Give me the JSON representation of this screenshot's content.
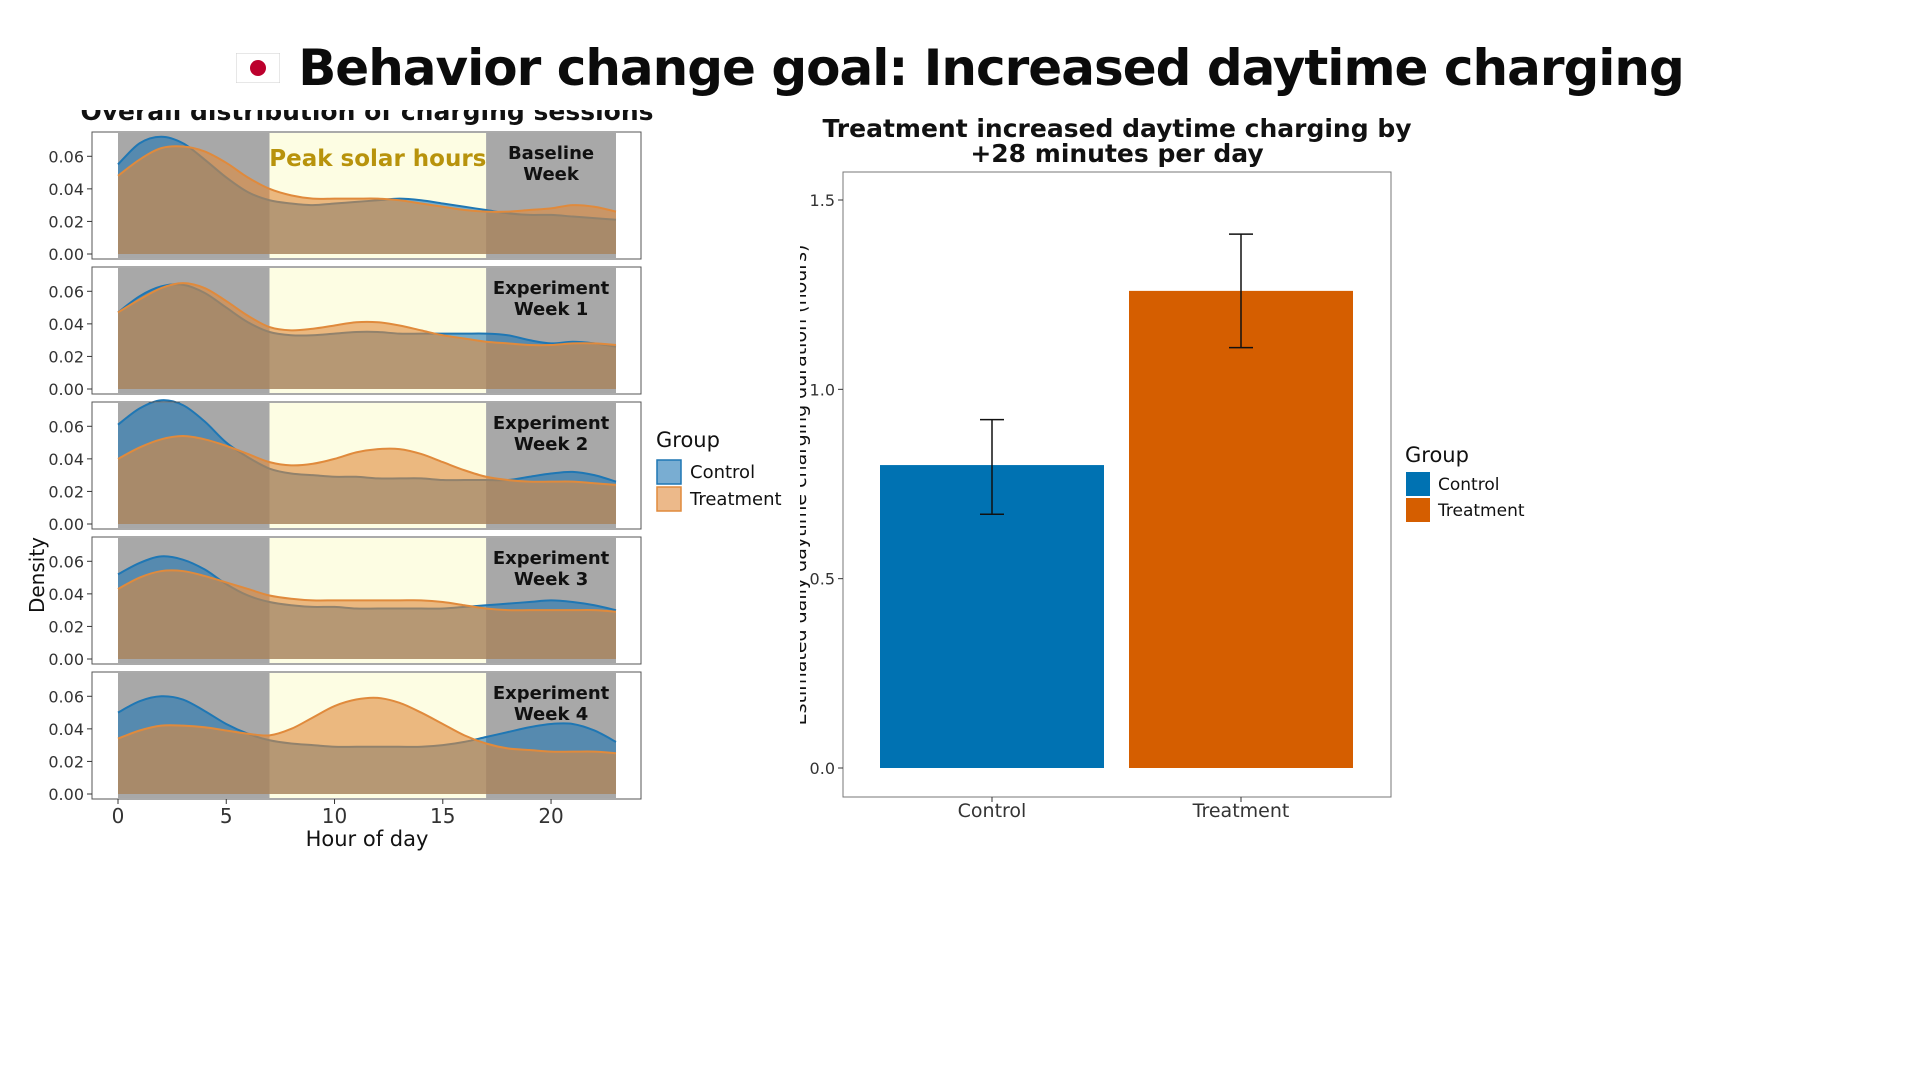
{
  "header": {
    "title": "Behavior change goal: Increased daytime charging",
    "flag_icon": "japan-flag-icon"
  },
  "colors": {
    "control": "#1f77b4",
    "treatment": "#e08a3c",
    "control_bar": "#0072b2",
    "treatment_bar": "#d55e00",
    "night_shade": "#a8a8a8",
    "solar_shade": "#fdfde3",
    "solar_label": "#b8930c"
  },
  "chart_data": [
    {
      "type": "area",
      "title": "Overall distribution of charging sessions",
      "xlabel": "Hour of day",
      "ylabel": "Density",
      "xlim": [
        0,
        23
      ],
      "ylim": [
        0,
        0.07
      ],
      "x_ticks": [
        0,
        5,
        10,
        15,
        20
      ],
      "y_ticks": [
        "0.00",
        "0.02",
        "0.04",
        "0.06"
      ],
      "shaded_regions": [
        {
          "from": 0,
          "to": 7,
          "kind": "night"
        },
        {
          "from": 7,
          "to": 17,
          "kind": "solar",
          "label": "Peak solar hours"
        },
        {
          "from": 17,
          "to": 23,
          "kind": "night"
        }
      ],
      "legend": {
        "title": "Group",
        "entries": [
          "Control",
          "Treatment"
        ],
        "position": "right"
      },
      "x": [
        0,
        1,
        2,
        3,
        4,
        5,
        6,
        7,
        8,
        9,
        10,
        11,
        12,
        13,
        14,
        15,
        16,
        17,
        18,
        19,
        20,
        21,
        22,
        23
      ],
      "panels": [
        {
          "label": "Baseline\nWeek",
          "label_lines": [
            "Baseline",
            "Week"
          ],
          "series": [
            {
              "name": "Control",
              "values": [
                0.055,
                0.068,
                0.072,
                0.068,
                0.058,
                0.047,
                0.038,
                0.033,
                0.031,
                0.03,
                0.031,
                0.032,
                0.033,
                0.034,
                0.033,
                0.031,
                0.029,
                0.027,
                0.025,
                0.024,
                0.024,
                0.023,
                0.022,
                0.021
              ]
            },
            {
              "name": "Treatment",
              "values": [
                0.048,
                0.058,
                0.065,
                0.066,
                0.063,
                0.056,
                0.047,
                0.04,
                0.036,
                0.034,
                0.034,
                0.034,
                0.034,
                0.033,
                0.031,
                0.029,
                0.027,
                0.026,
                0.026,
                0.027,
                0.028,
                0.03,
                0.029,
                0.026
              ]
            }
          ]
        },
        {
          "label": "Experiment\nWeek 1",
          "label_lines": [
            "Experiment",
            "Week 1"
          ],
          "series": [
            {
              "name": "Control",
              "values": [
                0.047,
                0.057,
                0.063,
                0.064,
                0.059,
                0.05,
                0.041,
                0.035,
                0.033,
                0.033,
                0.034,
                0.035,
                0.035,
                0.034,
                0.034,
                0.034,
                0.034,
                0.034,
                0.033,
                0.03,
                0.028,
                0.029,
                0.028,
                0.026
              ]
            },
            {
              "name": "Treatment",
              "values": [
                0.047,
                0.055,
                0.062,
                0.065,
                0.062,
                0.054,
                0.045,
                0.038,
                0.036,
                0.037,
                0.039,
                0.041,
                0.041,
                0.039,
                0.036,
                0.033,
                0.031,
                0.029,
                0.028,
                0.027,
                0.027,
                0.028,
                0.028,
                0.027
              ]
            }
          ]
        },
        {
          "label": "Experiment\nWeek 2",
          "label_lines": [
            "Experiment",
            "Week 2"
          ],
          "series": [
            {
              "name": "Control",
              "values": [
                0.061,
                0.071,
                0.076,
                0.073,
                0.063,
                0.05,
                0.041,
                0.034,
                0.031,
                0.03,
                0.029,
                0.029,
                0.028,
                0.028,
                0.028,
                0.027,
                0.027,
                0.027,
                0.027,
                0.029,
                0.031,
                0.032,
                0.03,
                0.026
              ]
            },
            {
              "name": "Treatment",
              "values": [
                0.04,
                0.047,
                0.052,
                0.054,
                0.052,
                0.048,
                0.043,
                0.038,
                0.036,
                0.037,
                0.04,
                0.044,
                0.046,
                0.046,
                0.043,
                0.038,
                0.033,
                0.029,
                0.027,
                0.026,
                0.026,
                0.026,
                0.025,
                0.024
              ]
            }
          ]
        },
        {
          "label": "Experiment\nWeek 3",
          "label_lines": [
            "Experiment",
            "Week 3"
          ],
          "series": [
            {
              "name": "Control",
              "values": [
                0.052,
                0.059,
                0.063,
                0.061,
                0.055,
                0.046,
                0.039,
                0.035,
                0.033,
                0.032,
                0.032,
                0.031,
                0.031,
                0.031,
                0.031,
                0.031,
                0.032,
                0.033,
                0.034,
                0.035,
                0.036,
                0.035,
                0.033,
                0.03
              ]
            },
            {
              "name": "Treatment",
              "values": [
                0.043,
                0.05,
                0.054,
                0.054,
                0.051,
                0.047,
                0.043,
                0.039,
                0.037,
                0.036,
                0.036,
                0.036,
                0.036,
                0.036,
                0.036,
                0.035,
                0.033,
                0.031,
                0.03,
                0.03,
                0.03,
                0.03,
                0.03,
                0.029
              ]
            }
          ]
        },
        {
          "label": "Experiment\nWeek 4",
          "label_lines": [
            "Experiment",
            "Week 4"
          ],
          "series": [
            {
              "name": "Control",
              "values": [
                0.05,
                0.057,
                0.06,
                0.058,
                0.051,
                0.043,
                0.037,
                0.033,
                0.031,
                0.03,
                0.029,
                0.029,
                0.029,
                0.029,
                0.029,
                0.03,
                0.032,
                0.035,
                0.038,
                0.041,
                0.043,
                0.043,
                0.039,
                0.032
              ]
            },
            {
              "name": "Treatment",
              "values": [
                0.034,
                0.039,
                0.042,
                0.042,
                0.041,
                0.039,
                0.037,
                0.036,
                0.04,
                0.047,
                0.054,
                0.058,
                0.059,
                0.056,
                0.05,
                0.043,
                0.036,
                0.031,
                0.028,
                0.027,
                0.026,
                0.026,
                0.026,
                0.025
              ]
            }
          ]
        }
      ]
    },
    {
      "type": "bar",
      "title": "Treatment increased daytime charging by\n+28 minutes per day",
      "title_lines": [
        "Treatment increased daytime charging by",
        "+28 minutes per day"
      ],
      "xlabel": "",
      "ylabel": "Estimated daily daytime charging duration (hours)",
      "ylim": [
        0,
        1.6
      ],
      "y_ticks": [
        "0.0",
        "0.5",
        "1.0",
        "1.5"
      ],
      "categories": [
        "Control",
        "Treatment"
      ],
      "values": [
        0.8,
        1.26
      ],
      "error_bars": [
        [
          0.67,
          0.92
        ],
        [
          1.11,
          1.41
        ]
      ],
      "legend": {
        "title": "Group",
        "entries": [
          "Control",
          "Treatment"
        ],
        "position": "right"
      }
    }
  ]
}
